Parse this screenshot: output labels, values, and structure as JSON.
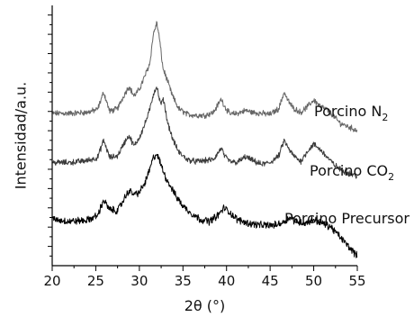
{
  "chart_data": {
    "type": "line",
    "title": "",
    "xlabel": "2θ (°)",
    "ylabel": "Intensidad/a.u.",
    "xlim": [
      20,
      55
    ],
    "x_ticks": [
      "20",
      "25",
      "30",
      "35",
      "40",
      "45",
      "50",
      "55"
    ],
    "y_ticks_labeled": false,
    "grid": false,
    "legend": "none (series labeled inline, right side)",
    "series": [
      {
        "name": "Porcino N2",
        "label_main": "Porcino N",
        "label_sub": "2",
        "color": "#666666",
        "noise": 2.4,
        "x": [
          20,
          22,
          24,
          25.2,
          25.9,
          26.6,
          27.5,
          28.3,
          28.8,
          29.4,
          30.0,
          30.6,
          31.2,
          31.6,
          32.0,
          32.3,
          32.7,
          33.1,
          33.8,
          34.5,
          35.5,
          36.5,
          37.5,
          38.5,
          39.4,
          39.8,
          40.4,
          41.2,
          42.2,
          43.0,
          44.0,
          45.0,
          46.0,
          46.6,
          47.0,
          47.6,
          48.5,
          49.3,
          50.0,
          50.8,
          51.5,
          52.2,
          53.0,
          54.0,
          55.0
        ],
        "y": [
          158,
          158,
          159,
          162,
          180,
          160,
          163,
          178,
          186,
          176,
          183,
          196,
          210,
          240,
          252,
          236,
          205,
          195,
          176,
          163,
          157,
          156,
          156,
          159,
          173,
          165,
          157,
          158,
          161,
          159,
          158,
          157,
          163,
          180,
          172,
          164,
          159,
          165,
          172,
          165,
          162,
          156,
          148,
          144,
          140
        ]
      },
      {
        "name": "Porcino CO2",
        "label_main": "Porcino CO",
        "label_sub": "2",
        "color": "#3c3c3c",
        "noise": 2.4,
        "x": [
          20,
          22,
          24,
          25.2,
          25.9,
          26.6,
          27.5,
          28.3,
          28.8,
          29.4,
          30.0,
          30.6,
          31.2,
          31.6,
          32.0,
          32.4,
          32.8,
          33.2,
          33.8,
          34.5,
          35.5,
          36.5,
          37.5,
          38.5,
          39.4,
          39.8,
          40.4,
          41.2,
          42.2,
          43.0,
          44.0,
          45.0,
          46.0,
          46.6,
          47.0,
          47.6,
          48.5,
          49.3,
          50.0,
          50.8,
          51.5,
          52.2,
          53.0,
          54.0,
          55.0
        ],
        "y": [
          107,
          107,
          109,
          112,
          130,
          112,
          114,
          128,
          135,
          124,
          133,
          146,
          162,
          178,
          186,
          168,
          172,
          150,
          132,
          118,
          110,
          108,
          109,
          110,
          122,
          113,
          108,
          107,
          113,
          109,
          105,
          107,
          114,
          130,
          123,
          115,
          108,
          119,
          126,
          120,
          113,
          106,
          100,
          96,
          93
        ]
      },
      {
        "name": "Porcino Precursor",
        "label_main": "Porcino Precursor",
        "label_sub": "",
        "color": "#000000",
        "noise": 3.0,
        "x": [
          20,
          22,
          24,
          25.2,
          25.9,
          26.6,
          27.5,
          28.3,
          28.8,
          29.4,
          30.0,
          30.6,
          31.2,
          31.6,
          32.0,
          32.5,
          33.0,
          33.6,
          34.2,
          35.0,
          36.0,
          37.0,
          38.0,
          39.0,
          39.7,
          40.4,
          41.2,
          42.5,
          44.0,
          45.5,
          46.5,
          47.2,
          48.0,
          49.0,
          50.0,
          51.0,
          52.0,
          53.0,
          54.0,
          55.0
        ],
        "y": [
          48,
          46,
          47,
          52,
          68,
          58,
          57,
          70,
          78,
          74,
          76,
          85,
          100,
          112,
          116,
          104,
          92,
          82,
          72,
          62,
          54,
          48,
          46,
          52,
          60,
          55,
          48,
          44,
          42,
          42,
          45,
          50,
          46,
          44,
          48,
          44,
          40,
          30,
          20,
          10
        ]
      }
    ]
  }
}
